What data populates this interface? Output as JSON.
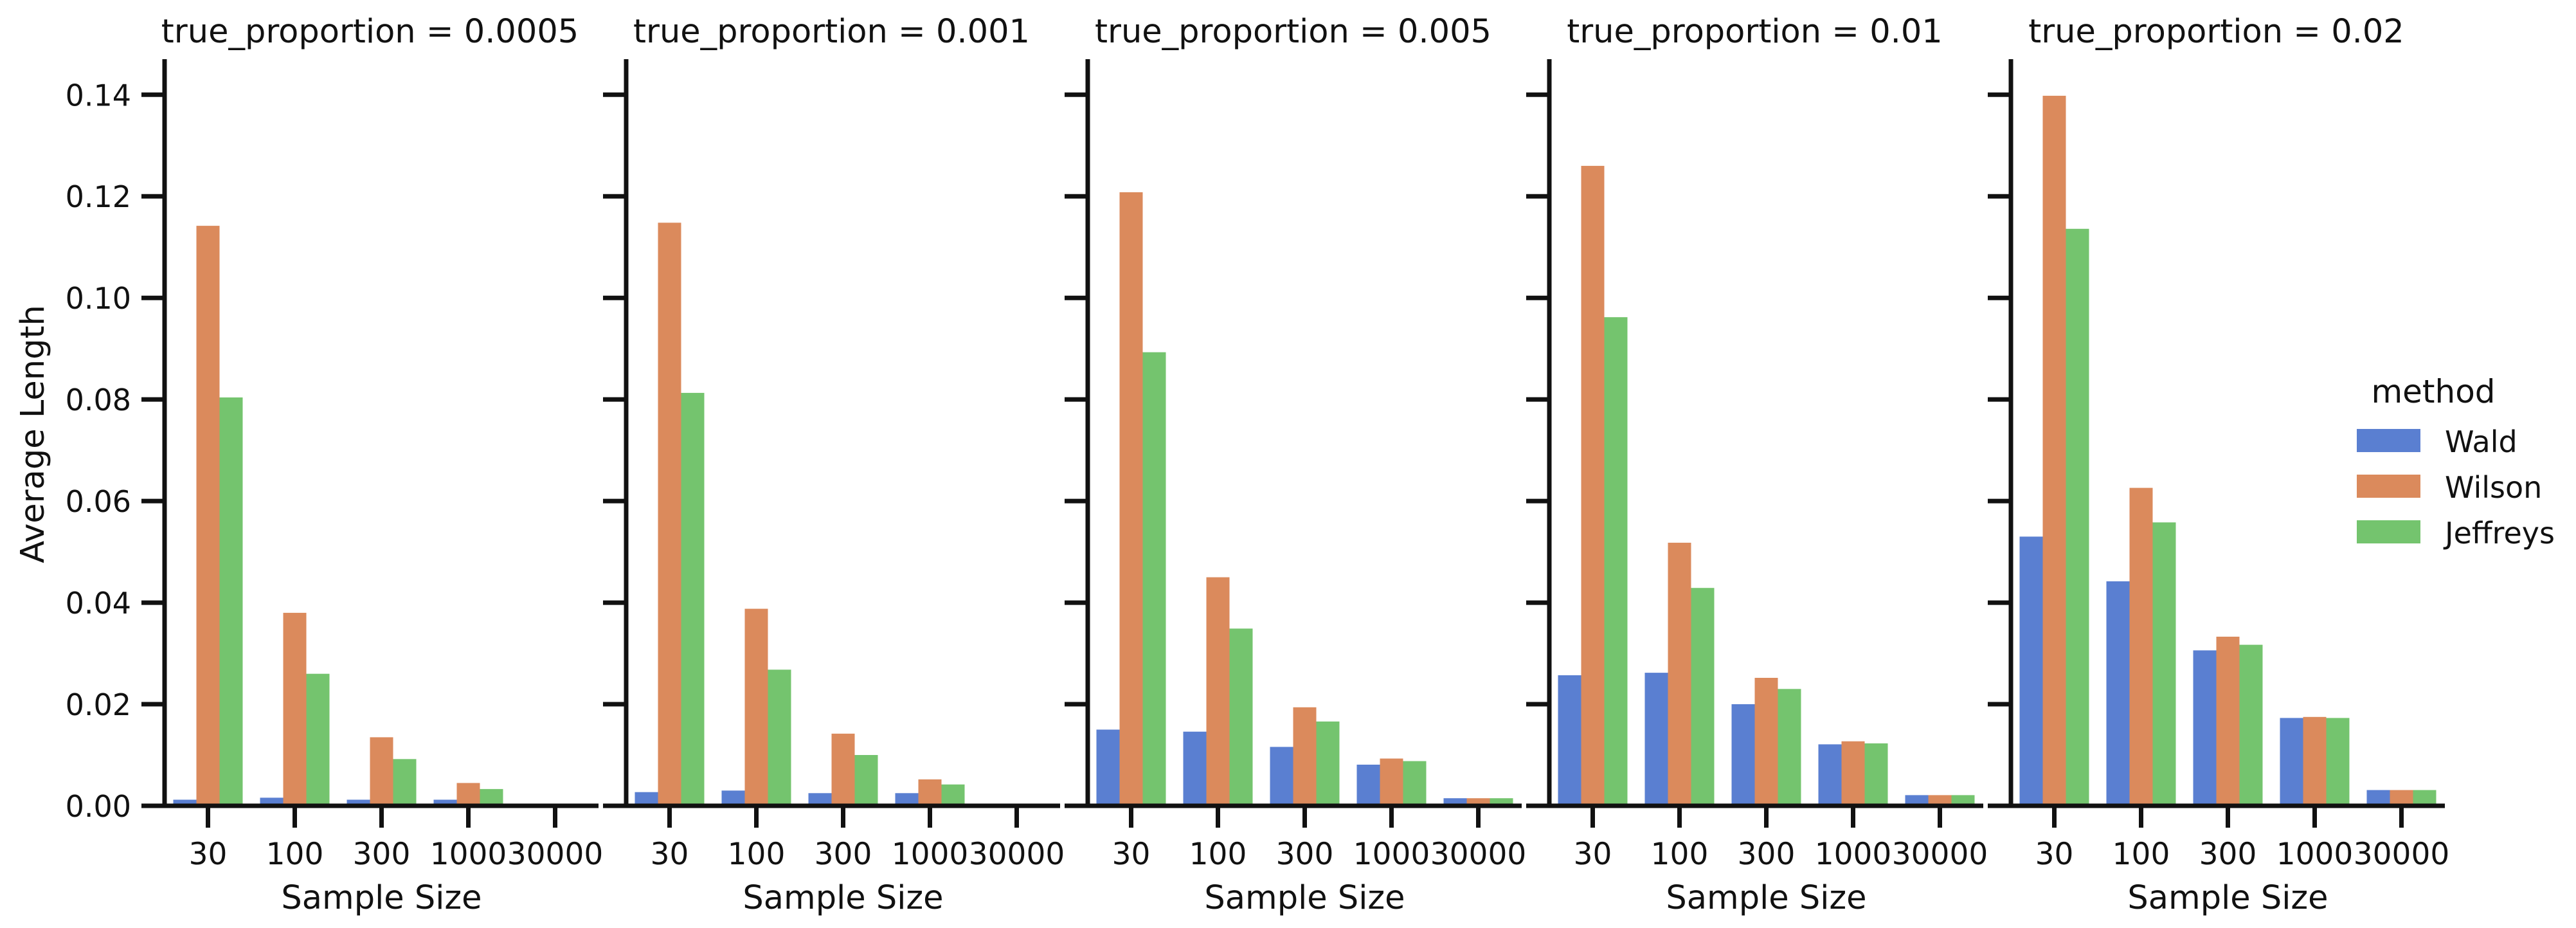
{
  "chart_data": {
    "type": "bar",
    "facet_variable": "true_proportion",
    "categories": [
      "30",
      "100",
      "300",
      "1000",
      "30000"
    ],
    "xlabel": "Sample Size",
    "ylabel": "Average Length",
    "ylim": [
      0,
      0.147
    ],
    "yticks": [
      "0.00",
      "0.02",
      "0.04",
      "0.06",
      "0.08",
      "0.10",
      "0.12",
      "0.14"
    ],
    "grid": false,
    "legend": {
      "title": "method",
      "placement": "right",
      "entries": [
        "Wald",
        "Wilson",
        "Jeffreys"
      ]
    },
    "series_colors": [
      "#5a7fd1",
      "#db8a5c",
      "#74c46e"
    ],
    "panels": [
      {
        "title": "true_proportion = 0.0005",
        "series": [
          {
            "name": "Wald",
            "values": [
              0.0012,
              0.0016,
              0.0012,
              0.0012,
              0.0001
            ]
          },
          {
            "name": "Wilson",
            "values": [
              0.1142,
              0.038,
              0.0135,
              0.0045,
              0.0003
            ]
          },
          {
            "name": "Jeffreys",
            "values": [
              0.0804,
              0.026,
              0.0092,
              0.0033,
              0.0002
            ]
          }
        ]
      },
      {
        "title": "true_proportion = 0.001",
        "series": [
          {
            "name": "Wald",
            "values": [
              0.0027,
              0.003,
              0.0025,
              0.0025,
              0.0003
            ]
          },
          {
            "name": "Wilson",
            "values": [
              0.1148,
              0.0388,
              0.0142,
              0.0052,
              0.0004
            ]
          },
          {
            "name": "Jeffreys",
            "values": [
              0.0813,
              0.0268,
              0.01,
              0.0042,
              0.0004
            ]
          }
        ]
      },
      {
        "title": "true_proportion = 0.005",
        "series": [
          {
            "name": "Wald",
            "values": [
              0.015,
              0.0146,
              0.0116,
              0.0081,
              0.0015
            ]
          },
          {
            "name": "Wilson",
            "values": [
              0.1208,
              0.045,
              0.0194,
              0.0093,
              0.0015
            ]
          },
          {
            "name": "Jeffreys",
            "values": [
              0.0893,
              0.0349,
              0.0166,
              0.0088,
              0.0015
            ]
          }
        ]
      },
      {
        "title": "true_proportion = 0.01",
        "series": [
          {
            "name": "Wald",
            "values": [
              0.0257,
              0.0262,
              0.02,
              0.0121,
              0.0021
            ]
          },
          {
            "name": "Wilson",
            "values": [
              0.126,
              0.0518,
              0.0252,
              0.0127,
              0.0021
            ]
          },
          {
            "name": "Jeffreys",
            "values": [
              0.0962,
              0.0429,
              0.023,
              0.0123,
              0.0021
            ]
          }
        ]
      },
      {
        "title": "true_proportion = 0.02",
        "series": [
          {
            "name": "Wald",
            "values": [
              0.053,
              0.0442,
              0.0306,
              0.0173,
              0.0031
            ]
          },
          {
            "name": "Wilson",
            "values": [
              0.1398,
              0.0626,
              0.0333,
              0.0175,
              0.0031
            ]
          },
          {
            "name": "Jeffreys",
            "values": [
              0.1136,
              0.0558,
              0.0317,
              0.0173,
              0.0031
            ]
          }
        ]
      }
    ]
  }
}
